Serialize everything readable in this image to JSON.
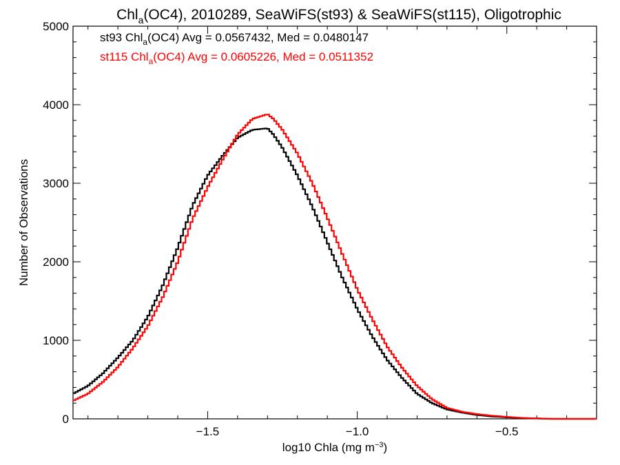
{
  "chart_data": {
    "type": "line",
    "title": "Chl_a(OC4), 2010289, SeaWiFS(st93) & SeaWiFS(st115), Oligotrophic",
    "xlabel": "log10 Chla (mg m^-3)",
    "ylabel": "Number of Observations",
    "xlim": [
      -1.95,
      -0.2
    ],
    "ylim": [
      0,
      5000
    ],
    "xticks": [
      {
        "value": -1.5,
        "label": "−1.5"
      },
      {
        "value": -1.0,
        "label": "−1.0"
      },
      {
        "value": -0.5,
        "label": "−0.5"
      }
    ],
    "yticks": [
      {
        "value": 0,
        "label": "0"
      },
      {
        "value": 1000,
        "label": "1000"
      },
      {
        "value": 2000,
        "label": "2000"
      },
      {
        "value": 3000,
        "label": "3000"
      },
      {
        "value": 4000,
        "label": "4000"
      },
      {
        "value": 5000,
        "label": "5000"
      }
    ],
    "annotations": [
      {
        "prefix": "st93 Chl",
        "sub": "a",
        "rest": "(OC4) Avg = 0.0567432, Med = 0.0480147",
        "color": "#000000"
      },
      {
        "prefix": "st115 Chl",
        "sub": "a",
        "rest": "(OC4) Avg = 0.0605226, Med = 0.0511352",
        "color": "#ff0000"
      }
    ],
    "series": [
      {
        "color": "#000000",
        "x": [
          -1.95,
          -1.9,
          -1.85,
          -1.8,
          -1.75,
          -1.7,
          -1.65,
          -1.6,
          -1.55,
          -1.5,
          -1.45,
          -1.4,
          -1.35,
          -1.3,
          -1.28,
          -1.25,
          -1.2,
          -1.15,
          -1.1,
          -1.05,
          -1.0,
          -0.95,
          -0.9,
          -0.85,
          -0.8,
          -0.75,
          -0.7,
          -0.65,
          -0.6,
          -0.55,
          -0.5,
          -0.45,
          -0.4,
          -0.35,
          -0.3,
          -0.2
        ],
        "y": [
          320,
          420,
          580,
          780,
          1000,
          1300,
          1700,
          2180,
          2720,
          3100,
          3350,
          3580,
          3680,
          3700,
          3620,
          3450,
          3100,
          2700,
          2250,
          1800,
          1400,
          1050,
          750,
          520,
          320,
          200,
          120,
          80,
          50,
          30,
          20,
          10,
          5,
          0,
          0,
          0
        ]
      },
      {
        "color": "#ff0000",
        "x": [
          -1.95,
          -1.9,
          -1.85,
          -1.8,
          -1.75,
          -1.7,
          -1.65,
          -1.6,
          -1.55,
          -1.5,
          -1.45,
          -1.4,
          -1.35,
          -1.3,
          -1.28,
          -1.25,
          -1.2,
          -1.15,
          -1.1,
          -1.05,
          -1.0,
          -0.95,
          -0.9,
          -0.85,
          -0.8,
          -0.75,
          -0.7,
          -0.65,
          -0.6,
          -0.55,
          -0.5,
          -0.45,
          -0.4,
          -0.35,
          -0.3,
          -0.2
        ],
        "y": [
          230,
          320,
          470,
          660,
          900,
          1180,
          1550,
          2000,
          2550,
          2950,
          3300,
          3620,
          3820,
          3880,
          3820,
          3680,
          3380,
          3000,
          2560,
          2100,
          1650,
          1270,
          920,
          650,
          420,
          250,
          140,
          90,
          60,
          40,
          25,
          12,
          6,
          0,
          0,
          0
        ]
      }
    ]
  }
}
